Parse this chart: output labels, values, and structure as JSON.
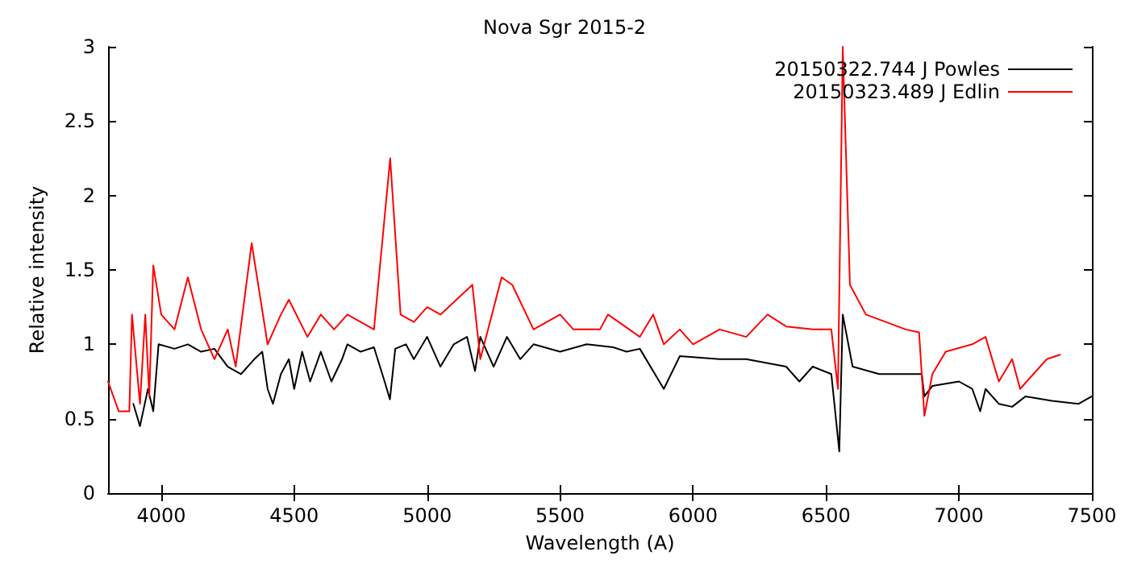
{
  "chart_data": {
    "type": "line",
    "title": "Nova Sgr 2015-2",
    "xlabel": "Wavelength (A)",
    "ylabel": "Relative intensity",
    "xlim": [
      3800,
      7500
    ],
    "xticks": [
      4000,
      4500,
      5000,
      5500,
      6000,
      6500,
      7000,
      7500
    ],
    "ylim": [
      0,
      3
    ],
    "yticks": [
      0,
      0.5,
      1,
      1.5,
      2,
      2.5,
      3
    ],
    "grid": false,
    "legend": "top right",
    "marker": "none",
    "line_style": "solid",
    "series": [
      {
        "name": "20150322.744 J Powles",
        "color": "#000000",
        "x": [
          3895,
          3920,
          3950,
          3970,
          3990,
          4050,
          4100,
          4150,
          4200,
          4250,
          4300,
          4350,
          4380,
          4400,
          4420,
          4450,
          4480,
          4500,
          4530,
          4560,
          4600,
          4640,
          4680,
          4700,
          4750,
          4800,
          4840,
          4860,
          4880,
          4920,
          4950,
          5000,
          5050,
          5100,
          5150,
          5180,
          5200,
          5250,
          5300,
          5350,
          5400,
          5500,
          5600,
          5700,
          5750,
          5800,
          5890,
          5950,
          6100,
          6200,
          6350,
          6400,
          6450,
          6520,
          6550,
          6563,
          6600,
          6700,
          6860,
          6870,
          6900,
          7000,
          7050,
          7080,
          7100,
          7150,
          7200,
          7250,
          7350,
          7450,
          7500
        ],
        "values": [
          0.6,
          0.45,
          0.7,
          0.55,
          1.0,
          0.97,
          1.0,
          0.95,
          0.97,
          0.85,
          0.8,
          0.9,
          0.95,
          0.7,
          0.6,
          0.8,
          0.9,
          0.7,
          0.95,
          0.75,
          0.95,
          0.75,
          0.9,
          1.0,
          0.95,
          0.98,
          0.75,
          0.63,
          0.97,
          1.0,
          0.9,
          1.05,
          0.85,
          1.0,
          1.05,
          0.82,
          1.05,
          0.85,
          1.05,
          0.9,
          1.0,
          0.95,
          1.0,
          0.98,
          0.95,
          0.97,
          0.7,
          0.92,
          0.9,
          0.9,
          0.85,
          0.75,
          0.85,
          0.8,
          0.28,
          1.2,
          0.85,
          0.8,
          0.8,
          0.65,
          0.72,
          0.75,
          0.7,
          0.55,
          0.7,
          0.6,
          0.58,
          0.65,
          0.62,
          0.6,
          0.65
        ]
      },
      {
        "name": "20150323.489 J Edlin",
        "color": "#ff0000",
        "x": [
          3800,
          3840,
          3880,
          3890,
          3920,
          3940,
          3955,
          3970,
          4000,
          4050,
          4100,
          4150,
          4200,
          4250,
          4280,
          4340,
          4400,
          4450,
          4480,
          4550,
          4600,
          4650,
          4700,
          4800,
          4861,
          4900,
          4950,
          5000,
          5050,
          5170,
          5200,
          5280,
          5320,
          5400,
          5500,
          5550,
          5650,
          5680,
          5800,
          5850,
          5890,
          5950,
          6000,
          6100,
          6200,
          6280,
          6350,
          6450,
          6520,
          6545,
          6563,
          6590,
          6650,
          6800,
          6850,
          6870,
          6900,
          6950,
          7050,
          7100,
          7150,
          7200,
          7230,
          7280,
          7330,
          7380
        ],
        "values": [
          0.75,
          0.55,
          0.55,
          1.2,
          0.6,
          1.2,
          0.65,
          1.53,
          1.2,
          1.1,
          1.45,
          1.1,
          0.9,
          1.1,
          0.85,
          1.68,
          1.0,
          1.2,
          1.3,
          1.05,
          1.2,
          1.1,
          1.2,
          1.1,
          2.25,
          1.2,
          1.15,
          1.25,
          1.2,
          1.4,
          0.9,
          1.45,
          1.4,
          1.1,
          1.2,
          1.1,
          1.1,
          1.2,
          1.05,
          1.2,
          1.0,
          1.1,
          1.0,
          1.1,
          1.05,
          1.2,
          1.12,
          1.1,
          1.1,
          0.7,
          3.0,
          1.4,
          1.2,
          1.1,
          1.08,
          0.52,
          0.8,
          0.95,
          1.0,
          1.05,
          0.75,
          0.9,
          0.7,
          0.8,
          0.9,
          0.93
        ]
      }
    ]
  }
}
